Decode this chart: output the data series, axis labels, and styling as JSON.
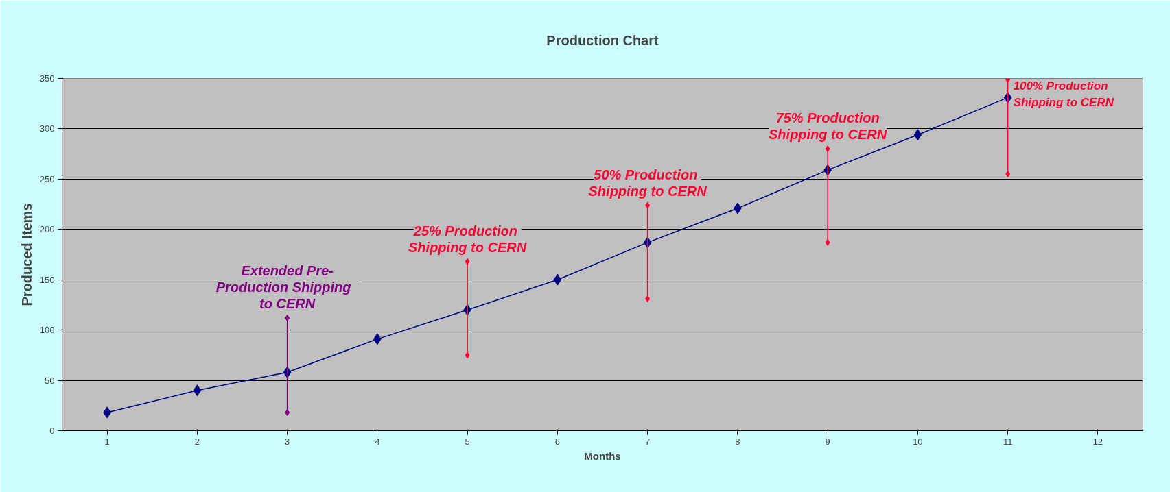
{
  "chart_data": {
    "type": "line",
    "title": "Production Chart",
    "xlabel": "Months",
    "ylabel": "Produced Items",
    "categories": [
      "1",
      "2",
      "3",
      "4",
      "5",
      "6",
      "7",
      "8",
      "9",
      "10",
      "11",
      "12"
    ],
    "series": [
      {
        "color": "#000080",
        "values": [
          18,
          40,
          58,
          91,
          120,
          150,
          187,
          221,
          259,
          294,
          331,
          null
        ],
        "marker": "diamond"
      },
      {
        "color": "#800080",
        "x": [
          "3",
          "3"
        ],
        "values": [
          18,
          112
        ],
        "marker": "diamond"
      },
      {
        "color": "#ff0033",
        "x": [
          "5",
          "5"
        ],
        "values": [
          75,
          168
        ],
        "marker": "diamond"
      },
      {
        "color": "#ff0033",
        "x": [
          "7",
          "7"
        ],
        "values": [
          131,
          224
        ],
        "marker": "diamond"
      },
      {
        "color": "#ff0033",
        "x": [
          "9",
          "9"
        ],
        "values": [
          187,
          280
        ],
        "marker": "diamond"
      },
      {
        "color": "#ff0033",
        "x": [
          "11",
          "11"
        ],
        "values": [
          255,
          349
        ],
        "marker": "diamond"
      }
    ],
    "annotations": [
      {
        "text": "Extended Pre-\nProduction   Shipping\nto CERN",
        "x": "3",
        "y": 112
      },
      {
        "text": "25%  Production\nShipping to CERN",
        "x": "5",
        "y": 168
      },
      {
        "text": "50%  Production\nShipping to CERN",
        "x": "7",
        "y": 224
      },
      {
        "text": "75% Production\nShipping to CERN",
        "x": "9",
        "y": 280
      },
      {
        "text": "100%   Production\nShipping to CERN",
        "x": "11",
        "y": 349
      }
    ],
    "ylim": [
      0,
      350
    ],
    "yticks": [
      0,
      50,
      100,
      150,
      200,
      250,
      300,
      350
    ],
    "grid": "y"
  }
}
